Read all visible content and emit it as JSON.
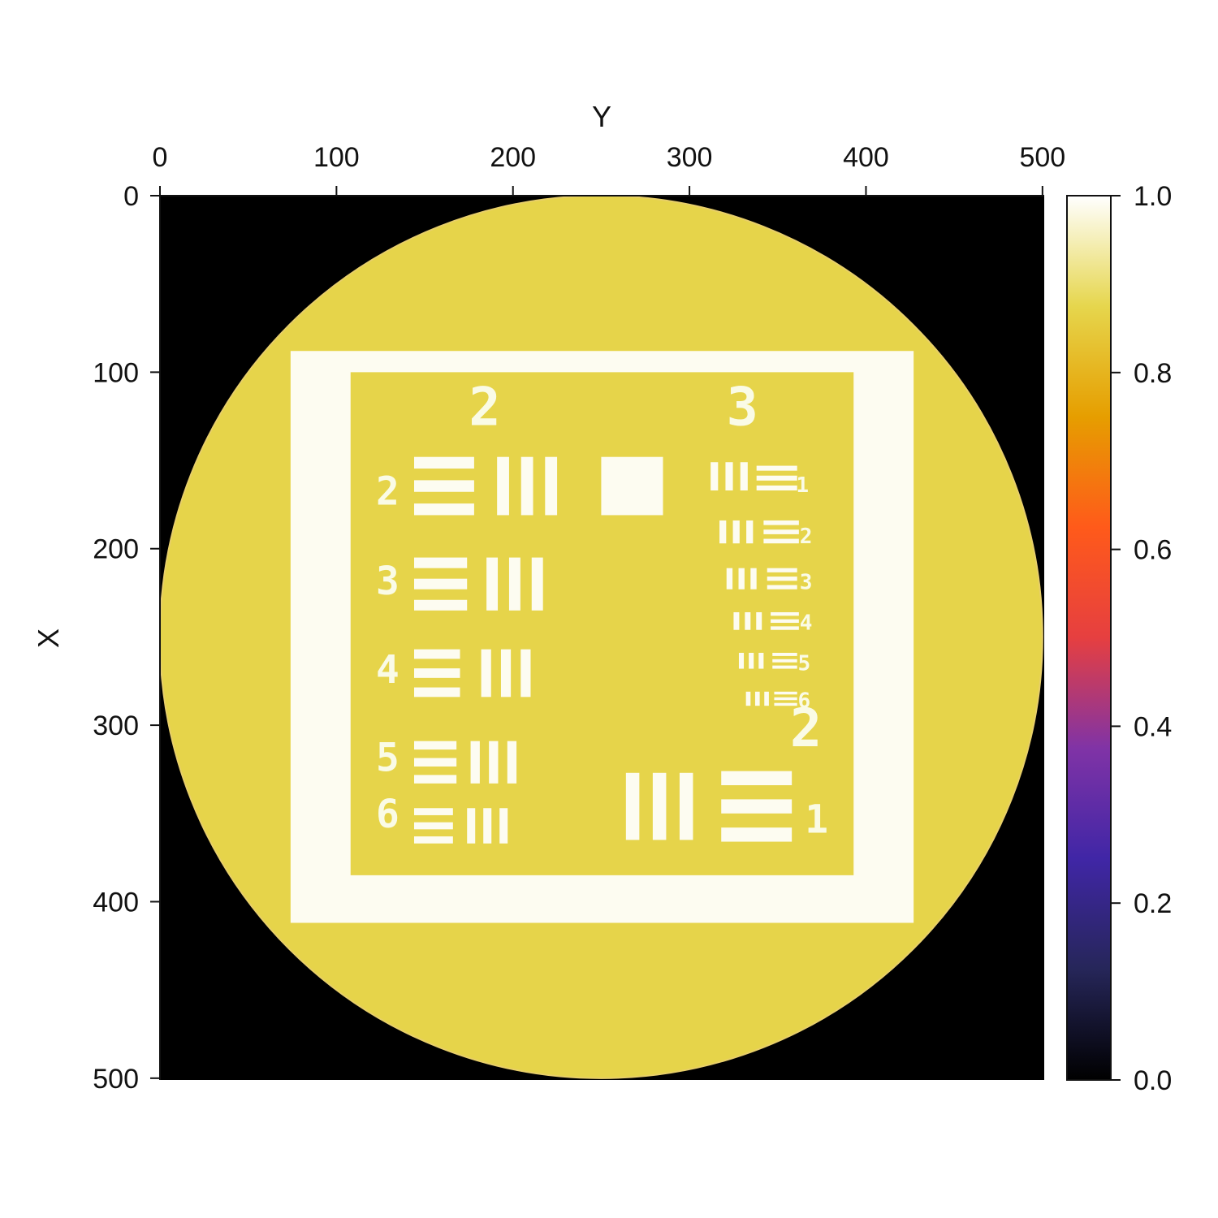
{
  "chart_data": {
    "type": "heatmap",
    "title": "",
    "xlabel": "Y",
    "ylabel": "X",
    "x_ticks": [
      "0",
      "100",
      "200",
      "300",
      "400",
      "500"
    ],
    "y_ticks": [
      "0",
      "100",
      "200",
      "300",
      "400",
      "500"
    ],
    "xlim": [
      0,
      501
    ],
    "ylim": [
      501,
      0
    ],
    "colorbar": {
      "min": 0.0,
      "max": 1.0,
      "ticks": [
        "0.0",
        "0.2",
        "0.4",
        "0.6",
        "0.8",
        "1.0"
      ],
      "colormap": "CMRmap"
    },
    "background_value": 0.0,
    "disk_value": 0.87,
    "target_value": 0.99,
    "disk": {
      "center_x": 250,
      "center_y": 250,
      "radius": 250
    },
    "frame": {
      "outer": [
        74,
        88,
        427,
        412
      ],
      "inner": [
        108,
        100,
        393,
        385
      ]
    },
    "square": {
      "x0": 250,
      "y0": 148,
      "x1": 285,
      "y1": 181
    },
    "group_labels": [
      {
        "text": "2",
        "x": 184,
        "y": 130,
        "size": 30
      },
      {
        "text": "3",
        "x": 330,
        "y": 130,
        "size": 30
      },
      {
        "text": "2",
        "x": 366,
        "y": 312,
        "size": 30
      }
    ],
    "element_labels": [
      {
        "text": "2",
        "x": 129,
        "y": 175,
        "size": 22
      },
      {
        "text": "3",
        "x": 129,
        "y": 226,
        "size": 22
      },
      {
        "text": "4",
        "x": 129,
        "y": 276,
        "size": 22
      },
      {
        "text": "5",
        "x": 129,
        "y": 326,
        "size": 22
      },
      {
        "text": "6",
        "x": 129,
        "y": 358,
        "size": 22
      },
      {
        "text": "1",
        "x": 372,
        "y": 361,
        "size": 22
      },
      {
        "text": "1",
        "x": 364,
        "y": 168,
        "size": 12
      },
      {
        "text": "2",
        "x": 366,
        "y": 197,
        "size": 12
      },
      {
        "text": "3",
        "x": 366,
        "y": 223,
        "size": 12
      },
      {
        "text": "4",
        "x": 366,
        "y": 246,
        "size": 12
      },
      {
        "text": "5",
        "x": 365,
        "y": 269,
        "size": 12
      },
      {
        "text": "6",
        "x": 365,
        "y": 290,
        "size": 12
      }
    ],
    "bar_groups": [
      {
        "orient": "h",
        "x0": 144,
        "y0": 148,
        "x1": 178,
        "y1": 181
      },
      {
        "orient": "v",
        "x0": 191,
        "y0": 148,
        "x1": 225,
        "y1": 181
      },
      {
        "orient": "h",
        "x0": 144,
        "y0": 205,
        "x1": 174,
        "y1": 235
      },
      {
        "orient": "v",
        "x0": 185,
        "y0": 205,
        "x1": 217,
        "y1": 235
      },
      {
        "orient": "h",
        "x0": 144,
        "y0": 257,
        "x1": 170,
        "y1": 284
      },
      {
        "orient": "v",
        "x0": 182,
        "y0": 257,
        "x1": 210,
        "y1": 284
      },
      {
        "orient": "h",
        "x0": 144,
        "y0": 309,
        "x1": 168,
        "y1": 333
      },
      {
        "orient": "v",
        "x0": 176,
        "y0": 309,
        "x1": 202,
        "y1": 333
      },
      {
        "orient": "h",
        "x0": 144,
        "y0": 347,
        "x1": 166,
        "y1": 367
      },
      {
        "orient": "v",
        "x0": 174,
        "y0": 347,
        "x1": 197,
        "y1": 367
      },
      {
        "orient": "v",
        "x0": 264,
        "y0": 327,
        "x1": 302,
        "y1": 365
      },
      {
        "orient": "h",
        "x0": 318,
        "y0": 326,
        "x1": 358,
        "y1": 366
      },
      {
        "orient": "v",
        "x0": 312,
        "y0": 151,
        "x1": 333,
        "y1": 167
      },
      {
        "orient": "h",
        "x0": 338,
        "y0": 153,
        "x1": 361,
        "y1": 167
      },
      {
        "orient": "v",
        "x0": 317,
        "y0": 184,
        "x1": 336,
        "y1": 197
      },
      {
        "orient": "h",
        "x0": 342,
        "y0": 184,
        "x1": 362,
        "y1": 197
      },
      {
        "orient": "v",
        "x0": 321,
        "y0": 211,
        "x1": 338,
        "y1": 223
      },
      {
        "orient": "h",
        "x0": 344,
        "y0": 211,
        "x1": 361,
        "y1": 223
      },
      {
        "orient": "v",
        "x0": 325,
        "y0": 236,
        "x1": 341,
        "y1": 246
      },
      {
        "orient": "h",
        "x0": 346,
        "y0": 236,
        "x1": 362,
        "y1": 246
      },
      {
        "orient": "v",
        "x0": 328,
        "y0": 259,
        "x1": 342,
        "y1": 268
      },
      {
        "orient": "h",
        "x0": 347,
        "y0": 259,
        "x1": 361,
        "y1": 268
      },
      {
        "orient": "v",
        "x0": 332,
        "y0": 281,
        "x1": 345,
        "y1": 289
      },
      {
        "orient": "h",
        "x0": 348,
        "y0": 281,
        "x1": 361,
        "y1": 289
      }
    ]
  }
}
